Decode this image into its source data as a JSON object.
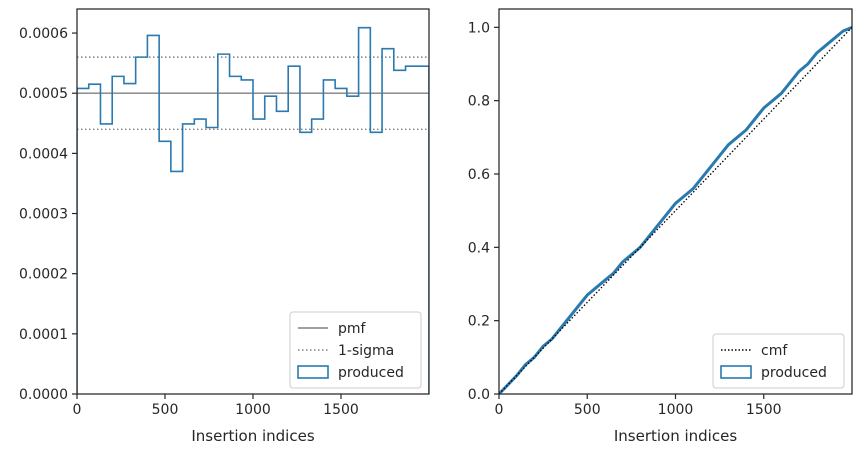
{
  "chart_data": [
    {
      "type": "line",
      "xlabel": "Insertion indices",
      "ylabel": "",
      "xlim": [
        0,
        2000
      ],
      "ylim": [
        0,
        0.00064
      ],
      "xticks": [
        "0",
        "500",
        "1000",
        "1500"
      ],
      "xtick_values": [
        0,
        500,
        1000,
        1500
      ],
      "yticks": [
        "0.0000",
        "0.0001",
        "0.0002",
        "0.0003",
        "0.0004",
        "0.0005",
        "0.0006"
      ],
      "ytick_values": [
        0,
        0.0001,
        0.0002,
        0.0003,
        0.0004,
        0.0005,
        0.0006
      ],
      "pmf_level": 0.0005,
      "sigma_levels": [
        0.00044,
        0.00056
      ],
      "bin_edges": [
        0,
        66.7,
        133.3,
        200,
        266.7,
        333.3,
        400,
        466.7,
        533.3,
        600,
        666.7,
        733.3,
        800,
        866.7,
        933.3,
        1000,
        1066.7,
        1133.3,
        1200,
        1266.7,
        1333.3,
        1400,
        1466.7,
        1533.3,
        1600,
        1666.7,
        1733.3,
        1800,
        1866.7,
        1933.3,
        2000
      ],
      "produced_values": [
        0.000508,
        0.000515,
        0.000449,
        0.000528,
        0.000516,
        0.00056,
        0.000596,
        0.00042,
        0.00037,
        0.000449,
        0.000457,
        0.000443,
        0.000565,
        0.000528,
        0.000522,
        0.000457,
        0.000495,
        0.00047,
        0.000545,
        0.000435,
        0.000457,
        0.000522,
        0.000508,
        0.000495,
        0.000609,
        0.000435,
        0.000574,
        0.000538,
        0.000545,
        0.000545
      ],
      "legend": {
        "placement": "lower-right",
        "entries": [
          {
            "label": "pmf",
            "style": "solid-gray"
          },
          {
            "label": "1-sigma",
            "style": "dotted-gray"
          },
          {
            "label": "produced",
            "style": "box-blue"
          }
        ]
      },
      "colors": {
        "produced": "#2a7ab0",
        "pmf": "#808080",
        "sigma": "#808080"
      }
    },
    {
      "type": "line",
      "xlabel": "Insertion indices",
      "ylabel": "",
      "xlim": [
        0,
        2000
      ],
      "ylim": [
        0,
        1.05
      ],
      "xticks": [
        "0",
        "500",
        "1000",
        "1500"
      ],
      "xtick_values": [
        0,
        500,
        1000,
        1500
      ],
      "yticks": [
        "0.0",
        "0.2",
        "0.4",
        "0.6",
        "0.8",
        "1.0"
      ],
      "ytick_values": [
        0,
        0.2,
        0.4,
        0.6,
        0.8,
        1.0
      ],
      "cmf": {
        "x": [
          0,
          2000
        ],
        "y": [
          0,
          1.0
        ]
      },
      "produced": {
        "x": [
          0,
          100,
          150,
          200,
          250,
          300,
          350,
          400,
          450,
          500,
          550,
          600,
          650,
          700,
          750,
          800,
          850,
          900,
          950,
          1000,
          1050,
          1100,
          1150,
          1200,
          1250,
          1300,
          1350,
          1400,
          1450,
          1500,
          1550,
          1600,
          1650,
          1700,
          1750,
          1800,
          1850,
          1900,
          1950,
          2000
        ],
        "y": [
          0,
          0.05,
          0.08,
          0.1,
          0.13,
          0.15,
          0.18,
          0.21,
          0.24,
          0.27,
          0.29,
          0.31,
          0.33,
          0.36,
          0.38,
          0.4,
          0.43,
          0.46,
          0.49,
          0.52,
          0.54,
          0.56,
          0.59,
          0.62,
          0.65,
          0.68,
          0.7,
          0.72,
          0.75,
          0.78,
          0.8,
          0.82,
          0.85,
          0.88,
          0.9,
          0.93,
          0.95,
          0.97,
          0.99,
          1.0
        ]
      },
      "legend": {
        "placement": "lower-right",
        "entries": [
          {
            "label": "cmf",
            "style": "dotted-black"
          },
          {
            "label": "produced",
            "style": "box-blue"
          }
        ]
      },
      "colors": {
        "produced": "#2a7ab0",
        "cmf": "#000000"
      }
    }
  ]
}
